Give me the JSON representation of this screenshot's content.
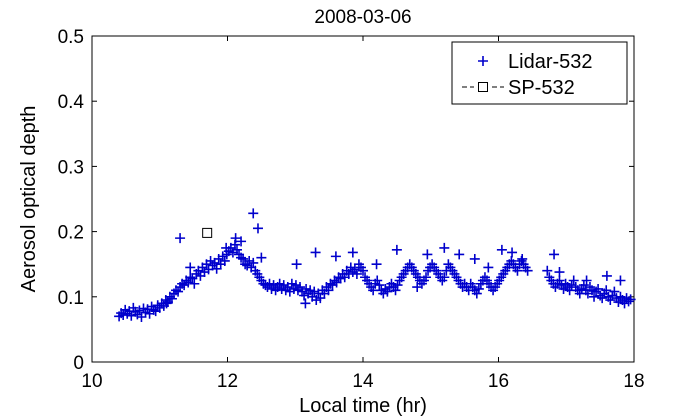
{
  "chart_data": {
    "type": "scatter",
    "title": "2008-03-06",
    "xlabel": "Local time (hr)",
    "ylabel": "Aerosol optical depth",
    "xlim": [
      10,
      18
    ],
    "ylim": [
      0,
      0.5
    ],
    "xticks": [
      10,
      12,
      14,
      16,
      18
    ],
    "yticks": [
      0,
      0.1,
      0.2,
      0.3,
      0.4,
      0.5
    ],
    "xtick_labels": [
      "10",
      "12",
      "14",
      "16",
      "18"
    ],
    "ytick_labels": [
      "0",
      "0.1",
      "0.2",
      "0.3",
      "0.4",
      "0.5"
    ],
    "legend_position": "top-right",
    "series": [
      {
        "name": "Lidar-532",
        "marker": "plus",
        "color": "#0000cc",
        "points": [
          [
            10.4,
            0.07
          ],
          [
            10.43,
            0.075
          ],
          [
            10.46,
            0.072
          ],
          [
            10.49,
            0.08
          ],
          [
            10.52,
            0.074
          ],
          [
            10.55,
            0.078
          ],
          [
            10.58,
            0.071
          ],
          [
            10.61,
            0.083
          ],
          [
            10.64,
            0.077
          ],
          [
            10.67,
            0.073
          ],
          [
            10.7,
            0.079
          ],
          [
            10.73,
            0.069
          ],
          [
            10.76,
            0.082
          ],
          [
            10.79,
            0.076
          ],
          [
            10.82,
            0.081
          ],
          [
            10.85,
            0.074
          ],
          [
            10.88,
            0.085
          ],
          [
            10.91,
            0.08
          ],
          [
            10.94,
            0.078
          ],
          [
            10.97,
            0.087
          ],
          [
            11.0,
            0.083
          ],
          [
            11.03,
            0.09
          ],
          [
            11.06,
            0.086
          ],
          [
            11.09,
            0.095
          ],
          [
            11.12,
            0.092
          ],
          [
            11.15,
            0.1
          ],
          [
            11.18,
            0.097
          ],
          [
            11.21,
            0.105
          ],
          [
            11.24,
            0.11
          ],
          [
            11.27,
            0.108
          ],
          [
            11.3,
            0.115
          ],
          [
            11.33,
            0.12
          ],
          [
            11.36,
            0.118
          ],
          [
            11.39,
            0.125
          ],
          [
            11.42,
            0.122
          ],
          [
            11.45,
            0.13
          ],
          [
            11.48,
            0.128
          ],
          [
            11.51,
            0.12
          ],
          [
            11.54,
            0.135
          ],
          [
            11.57,
            0.14
          ],
          [
            11.6,
            0.132
          ],
          [
            11.63,
            0.145
          ],
          [
            11.66,
            0.138
          ],
          [
            11.69,
            0.15
          ],
          [
            11.72,
            0.142
          ],
          [
            11.75,
            0.155
          ],
          [
            11.78,
            0.148
          ],
          [
            11.81,
            0.152
          ],
          [
            11.84,
            0.143
          ],
          [
            11.87,
            0.158
          ],
          [
            11.9,
            0.15
          ],
          [
            11.93,
            0.162
          ],
          [
            11.96,
            0.155
          ],
          [
            11.99,
            0.165
          ],
          [
            12.02,
            0.17
          ],
          [
            12.05,
            0.175
          ],
          [
            12.08,
            0.168
          ],
          [
            12.11,
            0.18
          ],
          [
            12.14,
            0.172
          ],
          [
            12.17,
            0.165
          ],
          [
            12.2,
            0.16
          ],
          [
            12.23,
            0.158
          ],
          [
            12.26,
            0.15
          ],
          [
            12.29,
            0.148
          ],
          [
            12.32,
            0.155
          ],
          [
            12.35,
            0.145
          ],
          [
            12.38,
            0.152
          ],
          [
            12.41,
            0.14
          ],
          [
            12.44,
            0.135
          ],
          [
            12.47,
            0.13
          ],
          [
            12.5,
            0.125
          ],
          [
            12.53,
            0.12
          ],
          [
            12.56,
            0.118
          ],
          [
            12.59,
            0.115
          ],
          [
            12.62,
            0.12
          ],
          [
            12.65,
            0.112
          ],
          [
            12.68,
            0.118
          ],
          [
            12.71,
            0.11
          ],
          [
            12.74,
            0.115
          ],
          [
            12.77,
            0.12
          ],
          [
            12.8,
            0.112
          ],
          [
            12.83,
            0.118
          ],
          [
            12.86,
            0.11
          ],
          [
            12.89,
            0.115
          ],
          [
            12.92,
            0.108
          ],
          [
            12.95,
            0.12
          ],
          [
            12.98,
            0.112
          ],
          [
            13.01,
            0.118
          ],
          [
            13.04,
            0.11
          ],
          [
            13.07,
            0.115
          ],
          [
            13.1,
            0.108
          ],
          [
            13.13,
            0.102
          ],
          [
            13.16,
            0.112
          ],
          [
            13.19,
            0.105
          ],
          [
            13.22,
            0.11
          ],
          [
            13.25,
            0.1
          ],
          [
            13.28,
            0.108
          ],
          [
            13.31,
            0.095
          ],
          [
            13.34,
            0.105
          ],
          [
            13.37,
            0.098
          ],
          [
            13.4,
            0.11
          ],
          [
            13.43,
            0.105
          ],
          [
            13.46,
            0.115
          ],
          [
            13.49,
            0.11
          ],
          [
            13.52,
            0.12
          ],
          [
            13.55,
            0.118
          ],
          [
            13.58,
            0.125
          ],
          [
            13.61,
            0.122
          ],
          [
            13.64,
            0.13
          ],
          [
            13.67,
            0.128
          ],
          [
            13.7,
            0.135
          ],
          [
            13.73,
            0.13
          ],
          [
            13.76,
            0.14
          ],
          [
            13.79,
            0.135
          ],
          [
            13.82,
            0.145
          ],
          [
            13.85,
            0.138
          ],
          [
            13.88,
            0.142
          ],
          [
            13.91,
            0.135
          ],
          [
            13.94,
            0.15
          ],
          [
            13.97,
            0.145
          ],
          [
            14.0,
            0.14
          ],
          [
            14.03,
            0.13
          ],
          [
            14.06,
            0.125
          ],
          [
            14.09,
            0.12
          ],
          [
            14.12,
            0.115
          ],
          [
            14.15,
            0.11
          ],
          [
            14.18,
            0.12
          ],
          [
            14.21,
            0.125
          ],
          [
            14.24,
            0.118
          ],
          [
            14.27,
            0.11
          ],
          [
            14.3,
            0.105
          ],
          [
            14.33,
            0.112
          ],
          [
            14.36,
            0.108
          ],
          [
            14.39,
            0.115
          ],
          [
            14.42,
            0.12
          ],
          [
            14.45,
            0.115
          ],
          [
            14.48,
            0.11
          ],
          [
            14.51,
            0.118
          ],
          [
            14.54,
            0.125
          ],
          [
            14.57,
            0.13
          ],
          [
            14.6,
            0.135
          ],
          [
            14.63,
            0.14
          ],
          [
            14.66,
            0.145
          ],
          [
            14.69,
            0.15
          ],
          [
            14.72,
            0.145
          ],
          [
            14.75,
            0.14
          ],
          [
            14.78,
            0.135
          ],
          [
            14.81,
            0.13
          ],
          [
            14.84,
            0.125
          ],
          [
            14.87,
            0.12
          ],
          [
            14.9,
            0.125
          ],
          [
            14.93,
            0.13
          ],
          [
            14.96,
            0.14
          ],
          [
            14.99,
            0.145
          ],
          [
            15.02,
            0.15
          ],
          [
            15.05,
            0.145
          ],
          [
            15.08,
            0.14
          ],
          [
            15.11,
            0.135
          ],
          [
            15.14,
            0.13
          ],
          [
            15.17,
            0.125
          ],
          [
            15.2,
            0.13
          ],
          [
            15.23,
            0.14
          ],
          [
            15.26,
            0.15
          ],
          [
            15.29,
            0.145
          ],
          [
            15.32,
            0.14
          ],
          [
            15.35,
            0.135
          ],
          [
            15.38,
            0.13
          ],
          [
            15.41,
            0.125
          ],
          [
            15.44,
            0.12
          ],
          [
            15.47,
            0.115
          ],
          [
            15.5,
            0.12
          ],
          [
            15.53,
            0.115
          ],
          [
            15.56,
            0.11
          ],
          [
            15.59,
            0.12
          ],
          [
            15.62,
            0.115
          ],
          [
            15.65,
            0.11
          ],
          [
            15.68,
            0.105
          ],
          [
            15.71,
            0.112
          ],
          [
            15.74,
            0.12
          ],
          [
            15.77,
            0.125
          ],
          [
            15.8,
            0.13
          ],
          [
            15.83,
            0.125
          ],
          [
            15.86,
            0.12
          ],
          [
            15.89,
            0.115
          ],
          [
            15.92,
            0.11
          ],
          [
            15.95,
            0.115
          ],
          [
            15.98,
            0.12
          ],
          [
            16.01,
            0.125
          ],
          [
            16.04,
            0.13
          ],
          [
            16.07,
            0.135
          ],
          [
            16.1,
            0.14
          ],
          [
            16.13,
            0.145
          ],
          [
            16.16,
            0.15
          ],
          [
            16.19,
            0.155
          ],
          [
            16.22,
            0.15
          ],
          [
            16.25,
            0.145
          ],
          [
            16.28,
            0.14
          ],
          [
            16.31,
            0.15
          ],
          [
            16.34,
            0.155
          ],
          [
            16.37,
            0.15
          ],
          [
            16.4,
            0.145
          ],
          [
            16.43,
            0.14
          ],
          [
            16.72,
            0.14
          ],
          [
            16.75,
            0.13
          ],
          [
            16.78,
            0.125
          ],
          [
            16.81,
            0.12
          ],
          [
            16.84,
            0.115
          ],
          [
            16.87,
            0.12
          ],
          [
            16.9,
            0.125
          ],
          [
            16.93,
            0.118
          ],
          [
            16.96,
            0.112
          ],
          [
            16.99,
            0.12
          ],
          [
            17.02,
            0.115
          ],
          [
            17.05,
            0.11
          ],
          [
            17.08,
            0.118
          ],
          [
            17.11,
            0.125
          ],
          [
            17.14,
            0.115
          ],
          [
            17.17,
            0.11
          ],
          [
            17.2,
            0.105
          ],
          [
            17.23,
            0.112
          ],
          [
            17.26,
            0.118
          ],
          [
            17.29,
            0.11
          ],
          [
            17.32,
            0.105
          ],
          [
            17.35,
            0.115
          ],
          [
            17.38,
            0.11
          ],
          [
            17.41,
            0.1
          ],
          [
            17.44,
            0.108
          ],
          [
            17.47,
            0.112
          ],
          [
            17.5,
            0.102
          ],
          [
            17.53,
            0.098
          ],
          [
            17.56,
            0.105
          ],
          [
            17.59,
            0.11
          ],
          [
            17.62,
            0.1
          ],
          [
            17.65,
            0.095
          ],
          [
            17.68,
            0.102
          ],
          [
            17.71,
            0.108
          ],
          [
            17.74,
            0.098
          ],
          [
            17.77,
            0.092
          ],
          [
            17.8,
            0.1
          ],
          [
            17.83,
            0.095
          ],
          [
            17.86,
            0.09
          ],
          [
            17.89,
            0.098
          ],
          [
            17.92,
            0.093
          ],
          [
            17.95,
            0.096
          ],
          [
            11.3,
            0.19
          ],
          [
            12.38,
            0.228
          ],
          [
            12.45,
            0.205
          ],
          [
            12.12,
            0.19
          ],
          [
            12.2,
            0.185
          ],
          [
            11.98,
            0.175
          ],
          [
            12.5,
            0.16
          ],
          [
            13.02,
            0.15
          ],
          [
            13.3,
            0.168
          ],
          [
            13.6,
            0.162
          ],
          [
            13.85,
            0.168
          ],
          [
            14.2,
            0.15
          ],
          [
            14.5,
            0.172
          ],
          [
            14.95,
            0.165
          ],
          [
            15.2,
            0.175
          ],
          [
            15.42,
            0.165
          ],
          [
            15.65,
            0.158
          ],
          [
            16.05,
            0.172
          ],
          [
            16.2,
            0.168
          ],
          [
            16.35,
            0.158
          ],
          [
            16.82,
            0.165
          ],
          [
            17.6,
            0.132
          ],
          [
            17.8,
            0.125
          ],
          [
            11.1,
            0.09
          ],
          [
            11.45,
            0.145
          ],
          [
            15.85,
            0.145
          ],
          [
            17.3,
            0.125
          ],
          [
            16.9,
            0.138
          ],
          [
            14.8,
            0.115
          ],
          [
            13.15,
            0.09
          ]
        ]
      },
      {
        "name": "SP-532",
        "marker": "square",
        "color": "#000000",
        "points": [
          [
            11.7,
            0.198
          ]
        ]
      }
    ]
  }
}
